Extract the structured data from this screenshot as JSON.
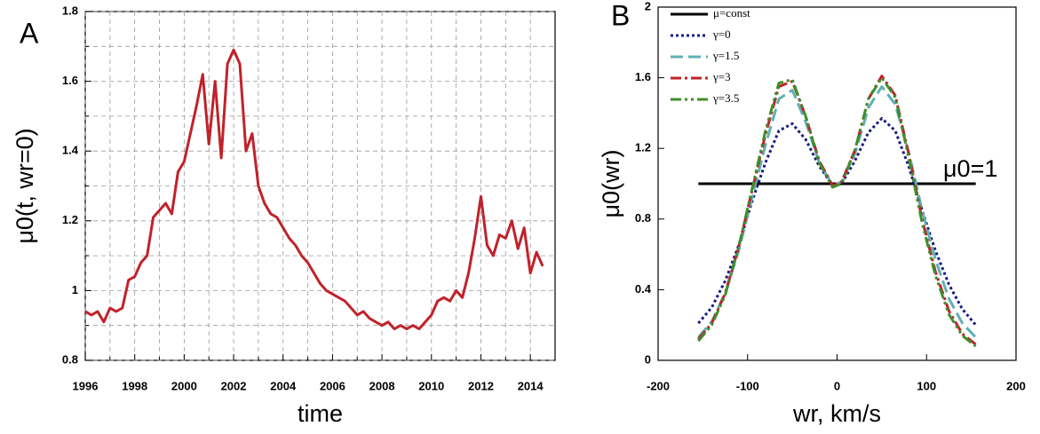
{
  "chart_data": [
    {
      "type": "line",
      "title": "A",
      "xlabel": "time",
      "ylabel": "μ0(t, wr=0)",
      "grid": true,
      "xlim": [
        1996,
        2015
      ],
      "xticks": [
        1996,
        1998,
        2000,
        2002,
        2004,
        2006,
        2008,
        2010,
        2012,
        2014
      ],
      "minor_xticks": [
        1997,
        1999,
        2001,
        2003,
        2005,
        2007,
        2009,
        2011,
        2013
      ],
      "ylim": [
        0.8,
        1.8
      ],
      "yticks": [
        0.8,
        1,
        1.2,
        1.4,
        1.6,
        1.8
      ],
      "minor_yticks": [
        0.9,
        1.1,
        1.3,
        1.5,
        1.7
      ],
      "x": [
        1996.0,
        1996.25,
        1996.5,
        1996.75,
        1997.0,
        1997.25,
        1997.5,
        1997.75,
        1998.0,
        1998.25,
        1998.5,
        1998.75,
        1999.0,
        1999.25,
        1999.5,
        1999.75,
        2000.0,
        2000.25,
        2000.5,
        2000.75,
        2001.0,
        2001.25,
        2001.5,
        2001.75,
        2002.0,
        2002.25,
        2002.5,
        2002.75,
        2003.0,
        2003.25,
        2003.5,
        2003.75,
        2004.0,
        2004.25,
        2004.5,
        2004.75,
        2005.0,
        2005.25,
        2005.5,
        2005.75,
        2006.0,
        2006.25,
        2006.5,
        2006.75,
        2007.0,
        2007.25,
        2007.5,
        2007.75,
        2008.0,
        2008.25,
        2008.5,
        2008.75,
        2009.0,
        2009.25,
        2009.5,
        2009.75,
        2010.0,
        2010.25,
        2010.5,
        2010.75,
        2011.0,
        2011.25,
        2011.5,
        2011.75,
        2012.0,
        2012.25,
        2012.5,
        2012.75,
        2013.0,
        2013.25,
        2013.5,
        2013.75,
        2014.0,
        2014.25,
        2014.5
      ],
      "series": [
        {
          "color": "#c0222a",
          "style": "solid",
          "values": [
            0.94,
            0.93,
            0.94,
            0.91,
            0.95,
            0.94,
            0.95,
            1.03,
            1.04,
            1.08,
            1.1,
            1.21,
            1.23,
            1.25,
            1.22,
            1.34,
            1.37,
            1.45,
            1.53,
            1.62,
            1.42,
            1.6,
            1.38,
            1.65,
            1.69,
            1.65,
            1.4,
            1.45,
            1.3,
            1.25,
            1.22,
            1.21,
            1.18,
            1.15,
            1.13,
            1.1,
            1.08,
            1.05,
            1.02,
            1.0,
            0.99,
            0.98,
            0.97,
            0.95,
            0.93,
            0.94,
            0.92,
            0.91,
            0.9,
            0.91,
            0.89,
            0.9,
            0.89,
            0.9,
            0.89,
            0.91,
            0.93,
            0.97,
            0.98,
            0.97,
            1.0,
            0.98,
            1.05,
            1.15,
            1.27,
            1.13,
            1.1,
            1.16,
            1.15,
            1.2,
            1.12,
            1.18,
            1.05,
            1.11,
            1.07
          ]
        }
      ]
    },
    {
      "type": "line",
      "title": "B",
      "xlabel": "wr, km/s",
      "ylabel": "μ0(wr)",
      "grid": false,
      "annotation": "μ0=1",
      "xlim": [
        -200,
        200
      ],
      "xticks": [
        -200,
        -100,
        0,
        100,
        200
      ],
      "ylim": [
        0,
        2
      ],
      "yticks": [
        0,
        0.4,
        0.8,
        1.2,
        1.6,
        2
      ],
      "x": [
        -155,
        -140,
        -125,
        -110,
        -95,
        -80,
        -65,
        -50,
        -35,
        -20,
        -5,
        5,
        20,
        35,
        50,
        65,
        80,
        95,
        110,
        125,
        140,
        155
      ],
      "series": [
        {
          "name": "μ=const",
          "color": "#000000",
          "style": "solid",
          "values": [
            1,
            1,
            1,
            1,
            1,
            1,
            1,
            1,
            1,
            1,
            1,
            1,
            1,
            1,
            1,
            1,
            1,
            1,
            1,
            1,
            1,
            1
          ]
        },
        {
          "name": "γ=0",
          "color": "#1a1a80",
          "style": "dotted",
          "values": [
            0.21,
            0.3,
            0.45,
            0.65,
            0.9,
            1.12,
            1.3,
            1.34,
            1.25,
            1.1,
            0.99,
            1.0,
            1.13,
            1.29,
            1.37,
            1.3,
            1.1,
            0.85,
            0.62,
            0.43,
            0.29,
            0.2
          ]
        },
        {
          "name": "γ=1.5",
          "color": "#5fb0b3",
          "style": "dashed",
          "values": [
            0.13,
            0.22,
            0.38,
            0.62,
            0.92,
            1.22,
            1.48,
            1.53,
            1.35,
            1.12,
            0.99,
            1.01,
            1.17,
            1.43,
            1.55,
            1.45,
            1.18,
            0.85,
            0.57,
            0.35,
            0.21,
            0.13
          ]
        },
        {
          "name": "γ=3",
          "color": "#c0222a",
          "style": "dashdot",
          "values": [
            0.12,
            0.21,
            0.38,
            0.64,
            0.96,
            1.28,
            1.55,
            1.58,
            1.38,
            1.13,
            0.99,
            1.01,
            1.19,
            1.48,
            1.61,
            1.5,
            1.17,
            0.8,
            0.5,
            0.28,
            0.15,
            0.09
          ]
        },
        {
          "name": "γ=3.5",
          "color": "#3d8f2a",
          "style": "dashdotdot",
          "values": [
            0.11,
            0.2,
            0.37,
            0.64,
            0.97,
            1.3,
            1.57,
            1.59,
            1.38,
            1.12,
            0.98,
            1.0,
            1.19,
            1.48,
            1.6,
            1.49,
            1.15,
            0.78,
            0.48,
            0.26,
            0.14,
            0.08
          ]
        }
      ]
    }
  ]
}
